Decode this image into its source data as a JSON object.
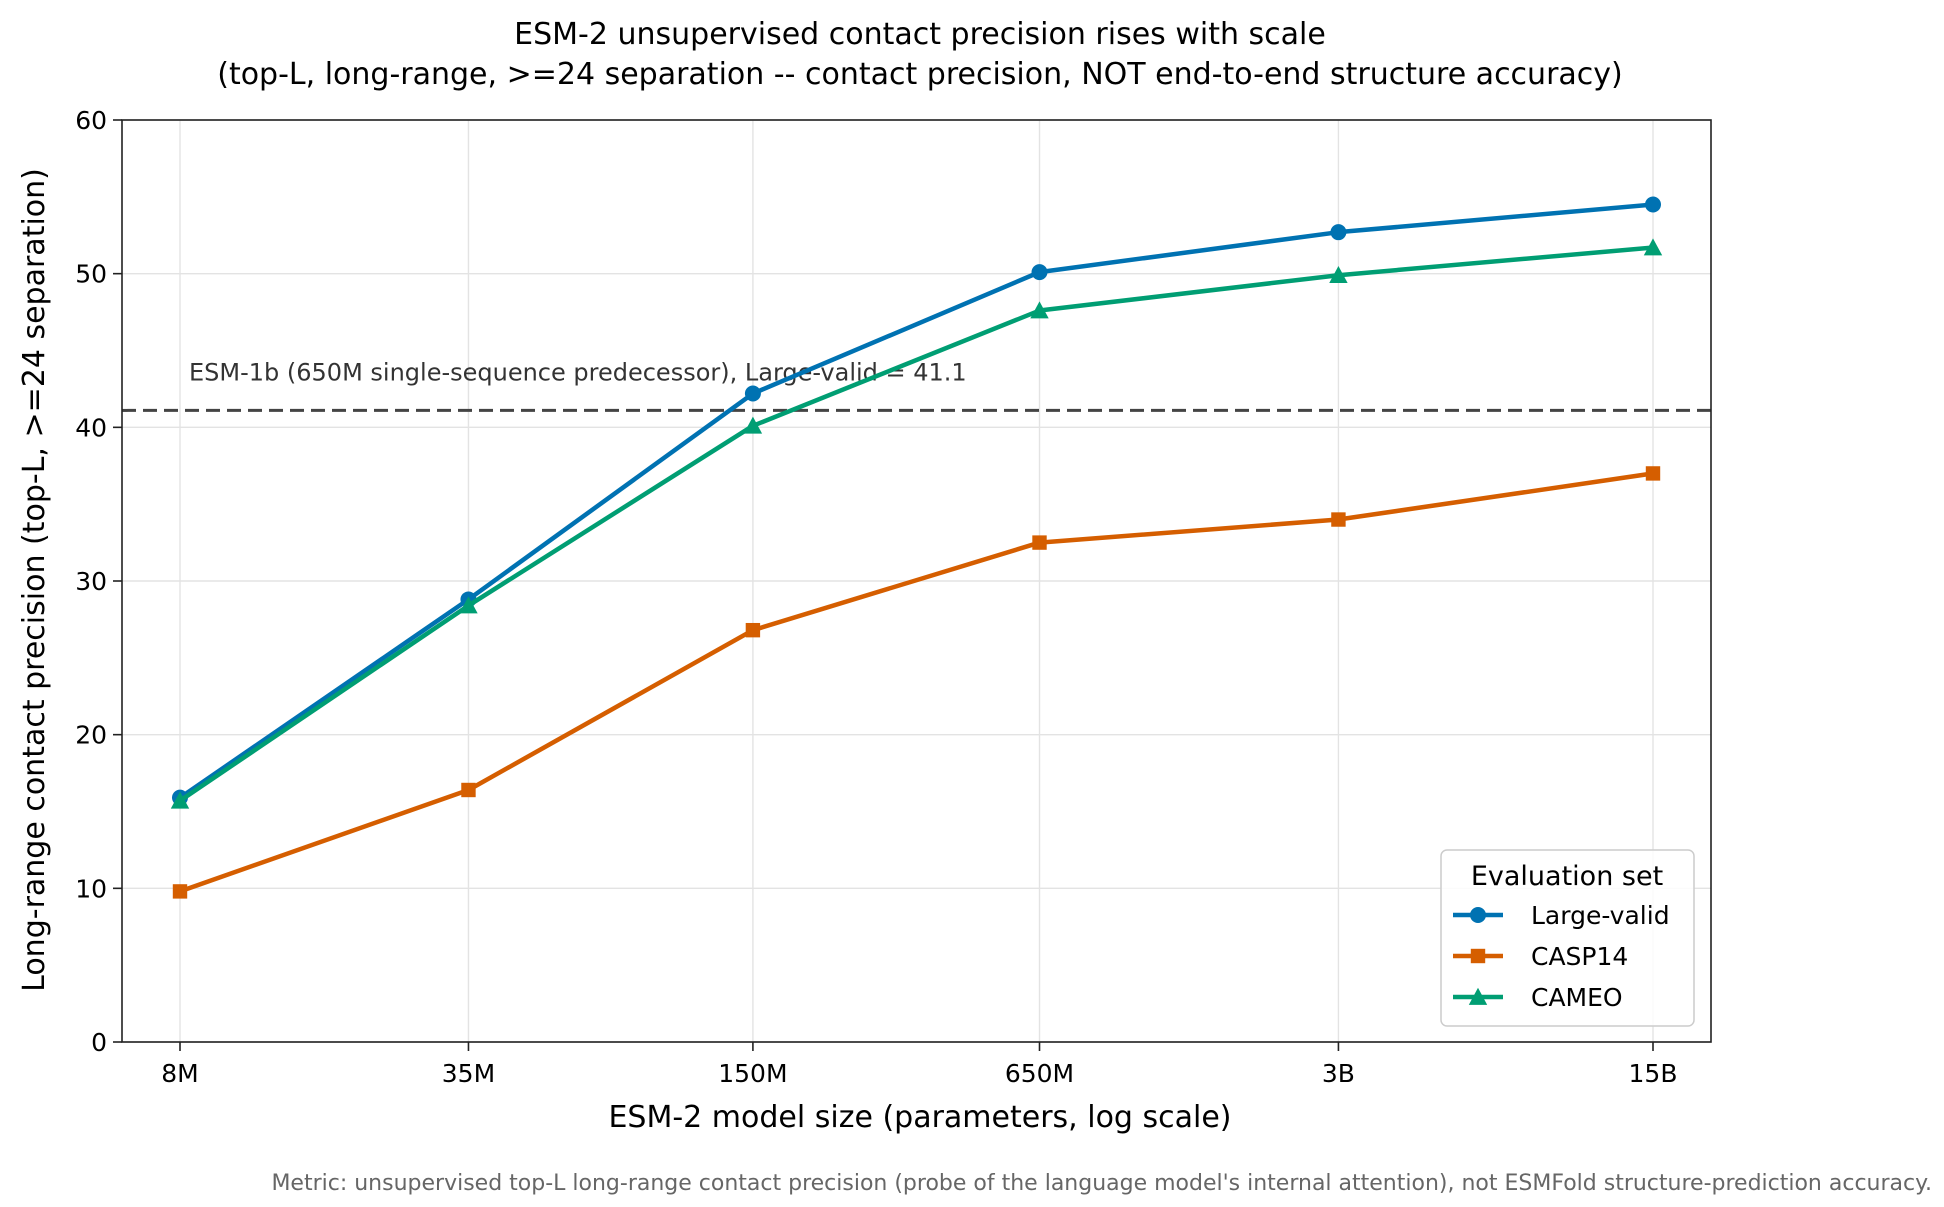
{
  "chart_data": {
    "type": "line",
    "title": "ESM-2 unsupervised contact precision rises with scale",
    "subtitle": "(top-L, long-range, >=24 separation -- contact precision, NOT end-to-end structure accuracy)",
    "xlabel": "ESM-2 model size (parameters, log scale)",
    "ylabel": "Long-range contact precision (top-L, >=24 separation)",
    "x_scale": "log",
    "x": [
      8,
      35,
      150,
      650,
      3000,
      15000
    ],
    "x_unit": "million parameters",
    "x_tick_labels": [
      "8M",
      "35M",
      "150M",
      "650M",
      "3B",
      "15B"
    ],
    "ylim": [
      0,
      60
    ],
    "y_ticks": [
      0,
      10,
      20,
      30,
      40,
      50,
      60
    ],
    "grid": true,
    "series": [
      {
        "name": "Large-valid",
        "color": "#0072b2",
        "marker": "circle",
        "values": [
          15.9,
          28.8,
          42.2,
          50.1,
          52.7,
          54.5
        ]
      },
      {
        "name": "CASP14",
        "color": "#d55e00",
        "marker": "square",
        "values": [
          9.8,
          16.4,
          26.8,
          32.5,
          34.0,
          37.0
        ]
      },
      {
        "name": "CAMEO",
        "color": "#009e73",
        "marker": "triangle",
        "values": [
          15.7,
          28.4,
          40.1,
          47.6,
          49.9,
          51.7
        ]
      }
    ],
    "reference_line": {
      "y": 41.1,
      "label": "ESM-1b (650M single-sequence predecessor), Large-valid = 41.1",
      "style": "dashed",
      "color": "#444444"
    },
    "legend": {
      "title": "Evaluation set",
      "placement": "lower-right"
    },
    "footnote": "Metric: unsupervised top-L long-range contact precision (probe of the language model's internal attention), not ESMFold structure-prediction accuracy."
  }
}
